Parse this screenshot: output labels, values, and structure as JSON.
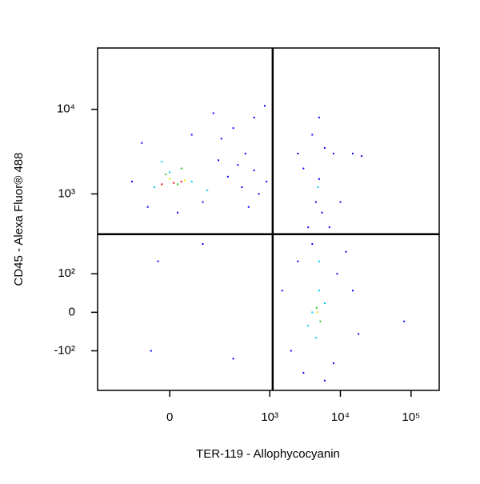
{
  "chart_data": {
    "type": "scatter",
    "x_label": "TER-119 - Allophycocyanin",
    "y_label": "CD45 - Alexa Fluor® 488",
    "scale": "biexponential",
    "xlim": [
      -400,
      250000
    ],
    "ylim": [
      -330,
      53000
    ],
    "xticks": [
      0,
      {
        "value": 1000,
        "label": "10³"
      },
      {
        "value": 10000,
        "label": "10⁴"
      },
      {
        "value": 100000,
        "label": "10⁵"
      }
    ],
    "yticks": [
      {
        "value": -100,
        "label": "-10²"
      },
      0,
      {
        "value": 100,
        "label": "10²"
      },
      {
        "value": 1000,
        "label": "10³"
      },
      {
        "value": 10000,
        "label": "10⁴"
      }
    ],
    "gates": {
      "x": 1100,
      "y": 330
    },
    "series": [
      {
        "color": "#0000ff",
        "x": [
          -120,
          -60,
          20,
          100,
          180,
          250,
          400,
          600,
          700,
          900,
          450,
          300,
          150,
          600,
          850,
          -80,
          60,
          200,
          350,
          500,
          2500,
          3000,
          5000,
          4500,
          5500,
          6000,
          8000,
          15000,
          20000,
          4000,
          5000,
          3500,
          7000,
          10000,
          12000,
          15000,
          2000,
          3000,
          6000,
          8000,
          18000,
          2500,
          4000,
          9000,
          80000,
          1500,
          -50,
          -30,
          300,
          100
        ],
        "y": [
          1400,
          700,
          600,
          800,
          2500,
          1600,
          1200,
          1900,
          1000,
          1400,
          3000,
          6000,
          9000,
          8000,
          11000,
          4000,
          5000,
          4500,
          2200,
          700,
          3000,
          2000,
          1500,
          800,
          600,
          3500,
          3000,
          3000,
          2800,
          5000,
          8000,
          400,
          400,
          800,
          200,
          50,
          -100,
          -200,
          -250,
          -150,
          -50,
          150,
          250,
          100,
          -20,
          50,
          -100,
          150,
          -130,
          250
        ]
      },
      {
        "color": "#00c8ff",
        "x": [
          0,
          -40,
          60,
          120,
          -20,
          4000,
          5000,
          4500,
          3500,
          6000,
          5000,
          4800
        ],
        "y": [
          1800,
          1200,
          1400,
          1100,
          2400,
          0,
          50,
          -60,
          -30,
          20,
          150,
          1200
        ]
      },
      {
        "color": "#22cc22",
        "x": [
          -10,
          30,
          20,
          4600,
          5200
        ],
        "y": [
          1700,
          2000,
          1300,
          10,
          -20
        ]
      },
      {
        "color": "#e8e800",
        "x": [
          0,
          40,
          4700
        ],
        "y": [
          1500,
          1450,
          0
        ]
      },
      {
        "color": "#ff0000",
        "x": [
          10,
          -20,
          30
        ],
        "y": [
          1350,
          1300,
          1400
        ]
      }
    ]
  }
}
